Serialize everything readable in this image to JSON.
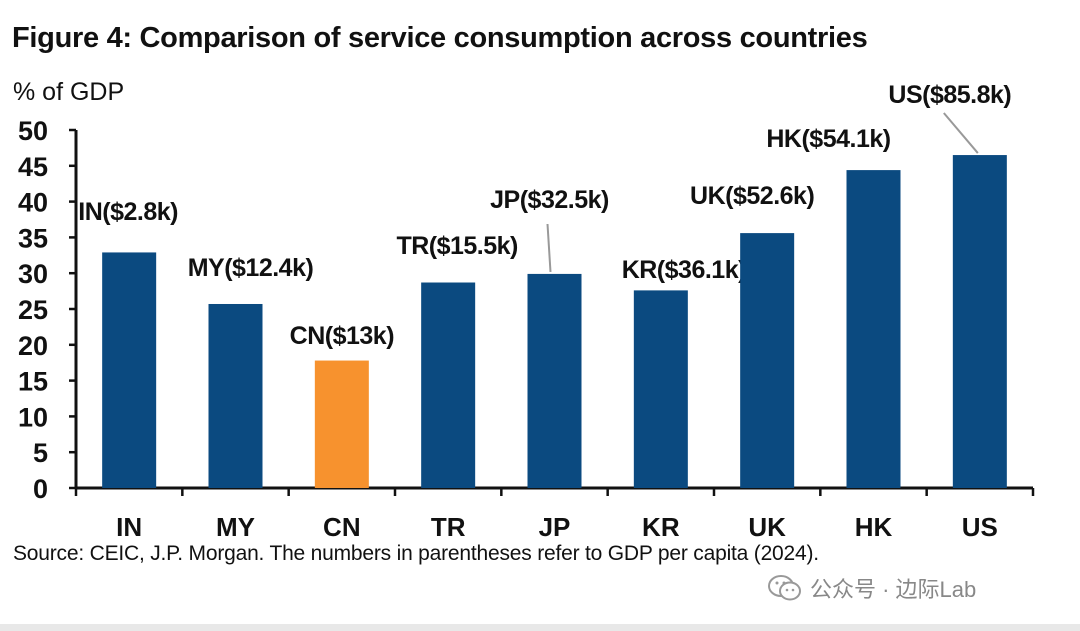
{
  "chart_data": {
    "type": "bar",
    "title": "Figure 4: Comparison of service consumption across countries",
    "ylabel": "% of GDP",
    "xlabel": "",
    "ylim": [
      0,
      50
    ],
    "yticks": [
      0,
      5,
      10,
      15,
      20,
      25,
      30,
      35,
      40,
      45,
      50
    ],
    "categories": [
      "IN",
      "MY",
      "CN",
      "TR",
      "JP",
      "KR",
      "UK",
      "HK",
      "US"
    ],
    "values": [
      32.9,
      25.7,
      17.8,
      28.7,
      29.9,
      27.6,
      35.6,
      44.4,
      46.5
    ],
    "data_labels": [
      "IN($2.8k)",
      "MY($12.4k)",
      "CN($13k)",
      "TR($15.5k)",
      "JP($32.5k)",
      "KR($36.1k)",
      "UK($52.6k)",
      "HK($54.1k)",
      "US($85.8k)"
    ],
    "highlight_category": "CN",
    "colors": {
      "default": "#0b4a80",
      "highlight": "#f7922e"
    },
    "grid": false,
    "source": "Source: CEIC, J.P. Morgan. The numbers in parentheses refer to GDP per capita (2024)."
  },
  "watermark": {
    "text": "公众号 · 边际Lab",
    "icon": "wechat-icon"
  }
}
